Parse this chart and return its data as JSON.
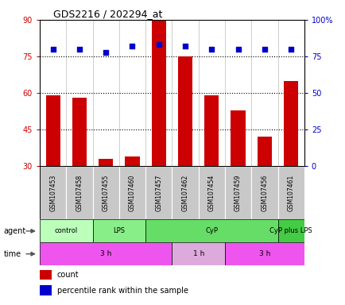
{
  "title": "GDS2216 / 202294_at",
  "samples": [
    "GSM107453",
    "GSM107458",
    "GSM107455",
    "GSM107460",
    "GSM107457",
    "GSM107462",
    "GSM107454",
    "GSM107459",
    "GSM107456",
    "GSM107461"
  ],
  "counts": [
    59,
    58,
    33,
    34,
    90,
    75,
    59,
    53,
    42,
    65
  ],
  "percentile_ranks": [
    80,
    80,
    78,
    82,
    83,
    82,
    80,
    80,
    80,
    80
  ],
  "bar_color": "#cc0000",
  "dot_color": "#0000cc",
  "ylim_left": [
    30,
    90
  ],
  "ylim_right": [
    0,
    100
  ],
  "yticks_left": [
    30,
    45,
    60,
    75,
    90
  ],
  "yticks_right": [
    0,
    25,
    50,
    75,
    100
  ],
  "ytick_labels_right": [
    "0",
    "25",
    "50",
    "75",
    "100%"
  ],
  "hlines": [
    45,
    60,
    75
  ],
  "agent_groups": [
    {
      "label": "control",
      "start": 0,
      "end": 2,
      "color": "#bbffbb"
    },
    {
      "label": "LPS",
      "start": 2,
      "end": 4,
      "color": "#88ee88"
    },
    {
      "label": "CyP",
      "start": 4,
      "end": 9,
      "color": "#66dd66"
    },
    {
      "label": "CyP plus LPS",
      "start": 9,
      "end": 10,
      "color": "#44cc44"
    }
  ],
  "time_groups": [
    {
      "label": "3 h",
      "start": 0,
      "end": 5,
      "color": "#ee55ee"
    },
    {
      "label": "1 h",
      "start": 5,
      "end": 7,
      "color": "#ddaadd"
    },
    {
      "label": "3 h",
      "start": 7,
      "end": 10,
      "color": "#ee55ee"
    }
  ],
  "legend_items": [
    {
      "color": "#cc0000",
      "label": "count"
    },
    {
      "color": "#0000cc",
      "label": "percentile rank within the sample"
    }
  ],
  "background_color": "#ffffff",
  "title_color": "#000000",
  "left_tick_color": "#cc0000",
  "right_tick_color": "#0000cc",
  "sample_bg_color": "#c8c8c8",
  "sample_border_color": "#ffffff"
}
